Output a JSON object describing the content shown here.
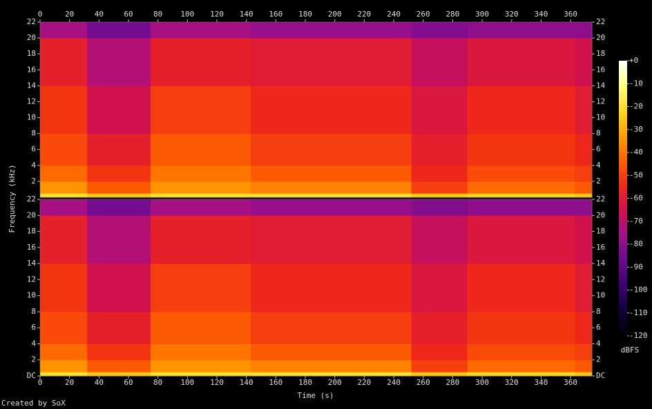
{
  "chart_data": {
    "type": "spectrogram",
    "x_label": "Time (s)",
    "y_label": "Frequency (kHz)",
    "credit": "Created by SoX",
    "xlim": [
      0,
      374.5
    ],
    "xticks": [
      0,
      20,
      40,
      60,
      80,
      100,
      120,
      140,
      160,
      180,
      200,
      220,
      240,
      260,
      280,
      300,
      320,
      340,
      360
    ],
    "ylim": [
      0,
      22
    ],
    "x_edges": [
      0,
      32,
      75,
      143,
      252,
      290,
      363,
      374.5
    ],
    "y_edges": [
      0,
      0.5,
      2,
      4,
      8,
      14,
      20,
      22
    ],
    "channels": [
      {
        "yticks": [
          2,
          4,
          6,
          8,
          10,
          12,
          14,
          16,
          18,
          20,
          22
        ],
        "values": [
          [
            -20,
            -25,
            -20,
            -20,
            -25,
            -22,
            -25
          ],
          [
            -35,
            -45,
            -35,
            -38,
            -50,
            -42,
            -45
          ],
          [
            -42,
            -52,
            -40,
            -45,
            -55,
            -48,
            -50
          ],
          [
            -48,
            -58,
            -45,
            -50,
            -58,
            -52,
            -55
          ],
          [
            -52,
            -65,
            -50,
            -55,
            -62,
            -55,
            -60
          ],
          [
            -58,
            -72,
            -58,
            -60,
            -68,
            -62,
            -65
          ],
          [
            -75,
            -85,
            -75,
            -78,
            -82,
            -80,
            -80
          ]
        ]
      },
      {
        "yticks": [
          {
            "value": 0,
            "label": "DC"
          },
          2,
          4,
          6,
          8,
          10,
          12,
          14,
          16,
          18,
          20,
          22
        ],
        "values": [
          [
            -20,
            -25,
            -20,
            -20,
            -25,
            -22,
            -25
          ],
          [
            -35,
            -45,
            -35,
            -38,
            -50,
            -42,
            -45
          ],
          [
            -42,
            -52,
            -40,
            -45,
            -55,
            -48,
            -50
          ],
          [
            -48,
            -58,
            -45,
            -50,
            -58,
            -52,
            -55
          ],
          [
            -52,
            -65,
            -50,
            -55,
            -62,
            -55,
            -60
          ],
          [
            -58,
            -72,
            -58,
            -60,
            -68,
            -62,
            -65
          ],
          [
            -75,
            -85,
            -75,
            -78,
            -82,
            -80,
            -80
          ]
        ]
      }
    ],
    "colorbar": {
      "label": "dBFS",
      "lim": [
        -120,
        0
      ],
      "ticks": [
        {
          "value": 0,
          "label": "+0"
        },
        -10,
        -20,
        -30,
        -40,
        -50,
        -60,
        -70,
        -80,
        -90,
        -100,
        -110,
        -120
      ],
      "colors": [
        "#000000",
        "#10003a",
        "#3a0070",
        "#6a0a90",
        "#a0108a",
        "#d01050",
        "#f02818",
        "#ff6000",
        "#ffa000",
        "#ffd820",
        "#ffff80",
        "#ffffff"
      ]
    }
  }
}
